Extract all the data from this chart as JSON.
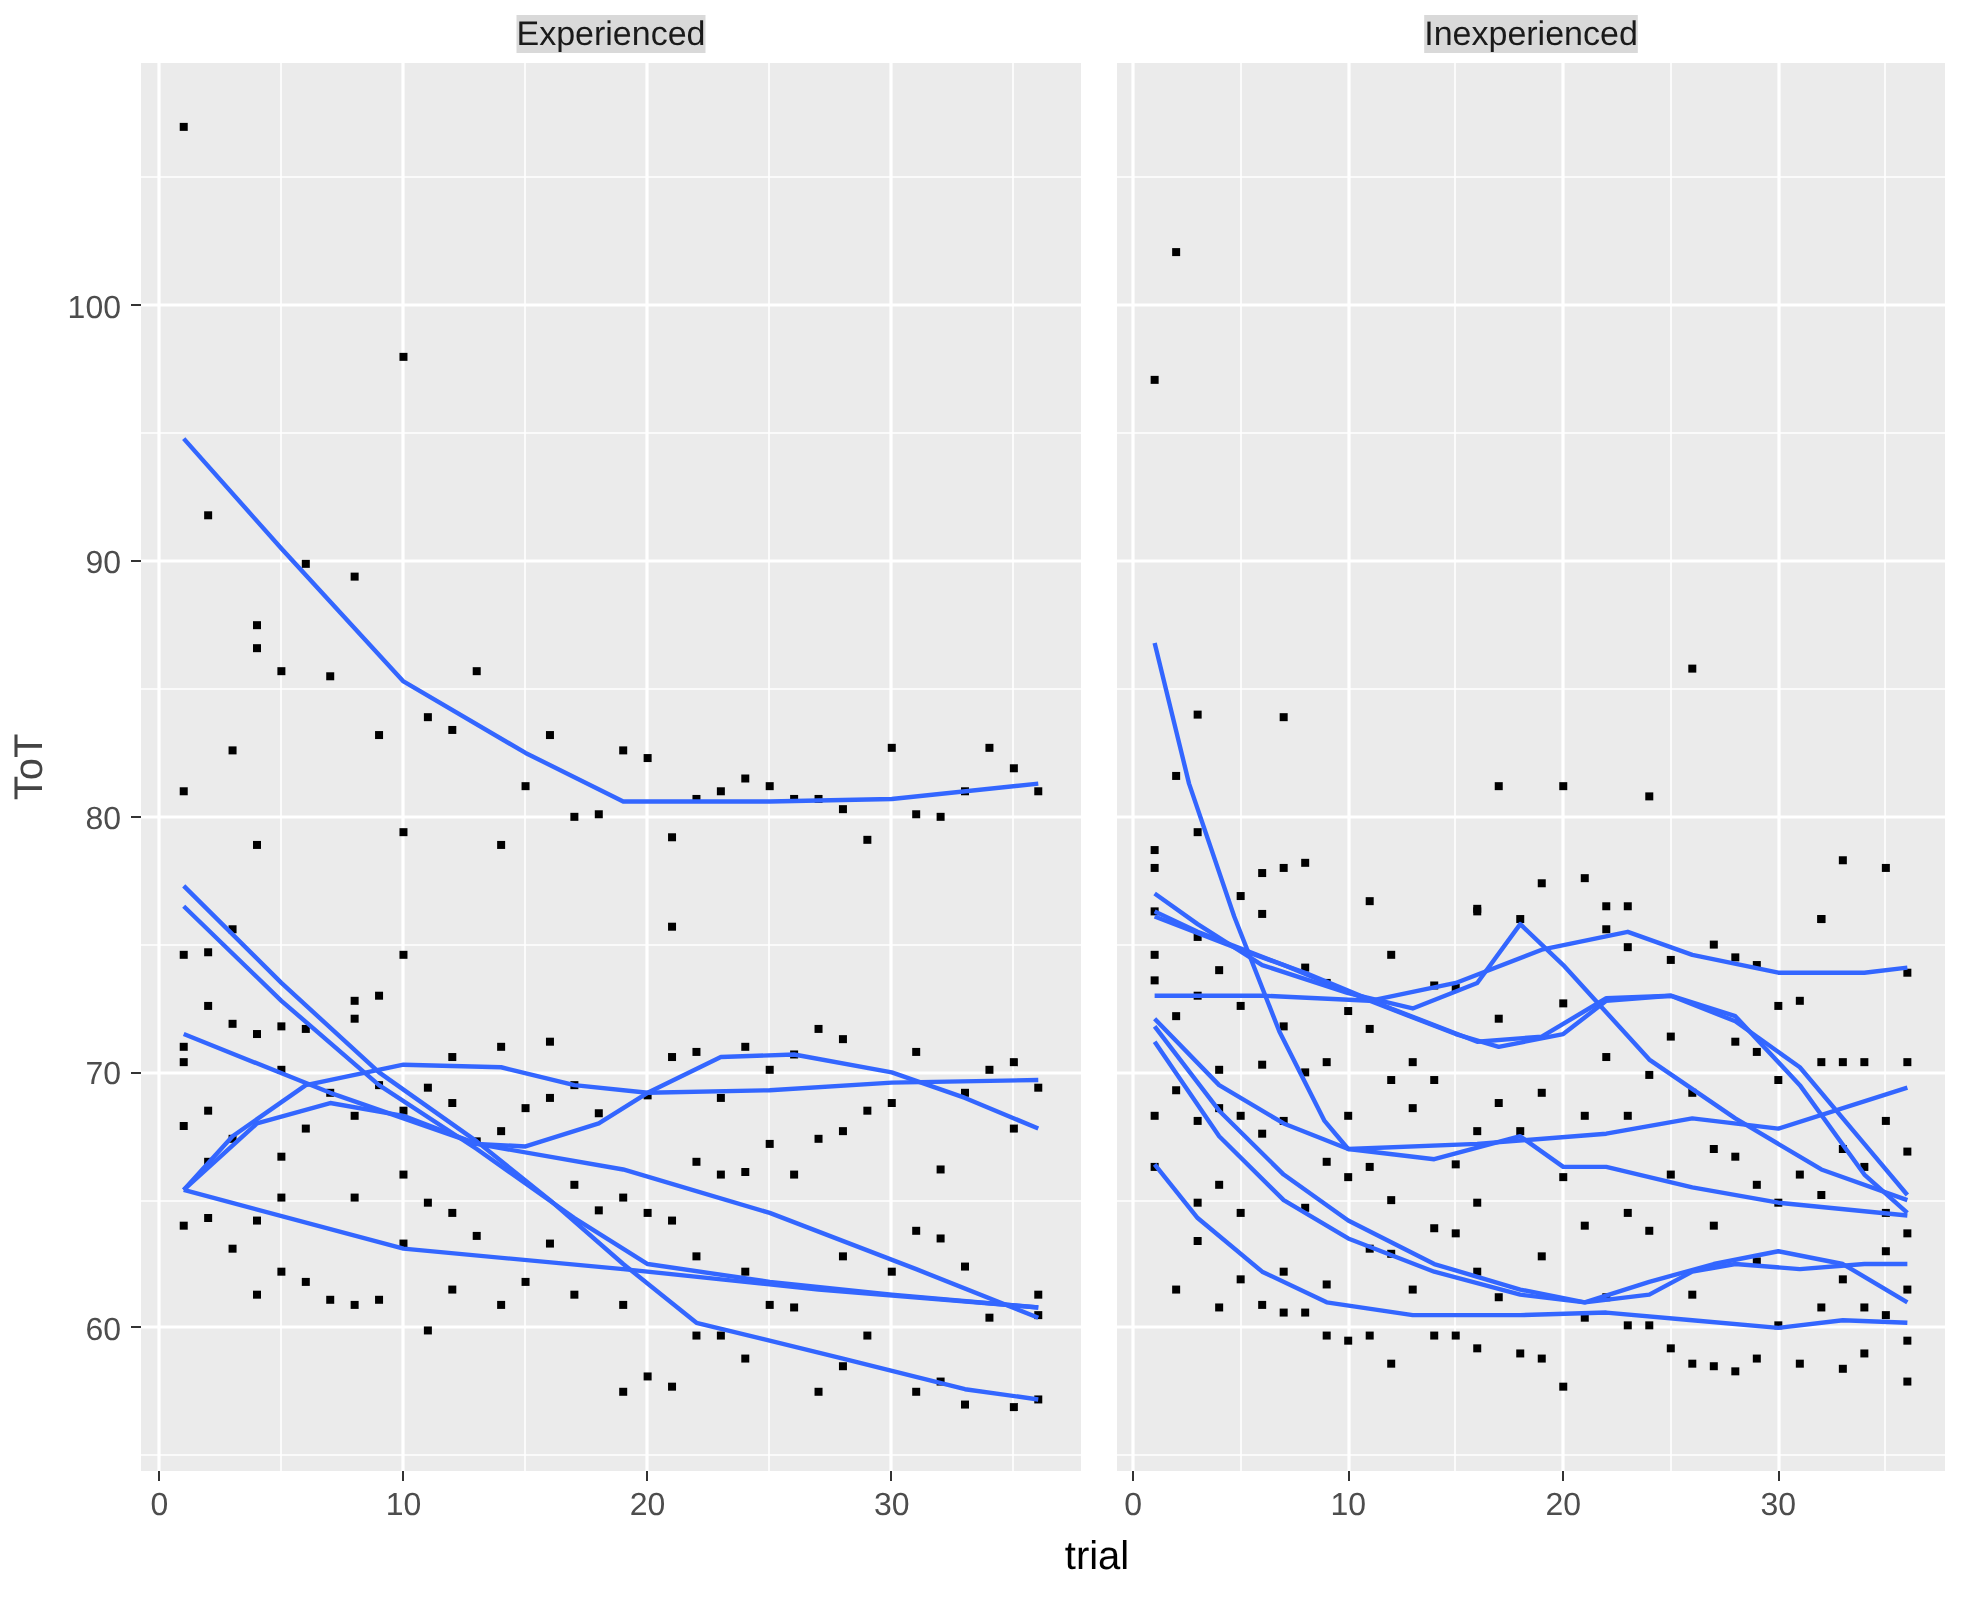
{
  "chart_data": [
    {
      "type": "line",
      "title": "Experienced",
      "xlabel": "trial",
      "ylabel": "ToT",
      "xlim": [
        -0.75,
        37.75
      ],
      "ylim": [
        54.4,
        109.5
      ],
      "xticks": [
        0,
        10,
        20,
        30
      ],
      "yticks": [
        60,
        70,
        80,
        90,
        100
      ],
      "grid": true,
      "series": [
        {
          "type": "scatter",
          "marker": "square",
          "color": "#000000",
          "x": [
            1,
            10,
            2,
            6,
            8,
            4,
            4,
            5,
            7,
            13,
            3,
            1,
            9,
            11,
            12,
            4,
            10,
            14,
            15,
            16,
            17,
            18,
            19,
            20,
            21,
            21,
            22,
            23,
            24,
            25,
            26,
            27,
            28,
            29,
            30,
            31,
            32,
            33,
            34,
            35,
            36,
            1,
            2,
            3,
            2,
            1,
            1,
            1,
            1,
            2,
            2,
            2,
            3,
            3,
            3,
            4,
            4,
            4,
            5,
            5,
            5,
            5,
            5,
            6,
            6,
            6,
            7,
            7,
            8,
            8,
            8,
            8,
            8,
            9,
            9,
            9,
            10,
            10,
            10,
            10,
            11,
            11,
            11,
            12,
            12,
            12,
            12,
            13,
            13,
            14,
            14,
            14,
            15,
            15,
            16,
            16,
            16,
            17,
            17,
            17,
            18,
            18,
            19,
            19,
            19,
            20,
            20,
            20,
            21,
            21,
            21,
            22,
            22,
            22,
            22,
            23,
            23,
            23,
            24,
            24,
            24,
            24,
            25,
            25,
            25,
            26,
            26,
            26,
            27,
            27,
            27,
            28,
            28,
            28,
            28,
            29,
            29,
            30,
            30,
            31,
            31,
            31,
            32,
            32,
            32,
            33,
            33,
            33,
            34,
            34,
            35,
            35,
            35,
            36,
            36,
            36,
            36
          ],
          "values": [
            107.0,
            98.0,
            91.8,
            89.9,
            89.4,
            87.5,
            86.6,
            85.7,
            85.5,
            85.7,
            82.6,
            81.0,
            83.2,
            83.9,
            83.4,
            78.9,
            79.4,
            78.9,
            81.2,
            83.2,
            80.0,
            80.1,
            82.6,
            82.3,
            79.2,
            75.7,
            80.7,
            81.0,
            81.5,
            81.2,
            80.7,
            80.7,
            80.3,
            79.1,
            82.7,
            80.1,
            80.0,
            81.0,
            82.7,
            81.9,
            81.0,
            74.6,
            74.7,
            75.6,
            72.6,
            71.0,
            70.4,
            67.9,
            64.0,
            68.5,
            66.5,
            64.3,
            71.9,
            67.4,
            63.1,
            71.5,
            64.2,
            61.3,
            71.8,
            70.1,
            66.7,
            65.1,
            62.2,
            71.7,
            67.8,
            61.8,
            69.2,
            61.1,
            72.8,
            72.1,
            68.3,
            65.1,
            60.9,
            73.0,
            69.5,
            61.1,
            74.6,
            68.5,
            66.0,
            63.3,
            69.4,
            64.9,
            59.9,
            70.6,
            68.8,
            64.5,
            61.5,
            67.3,
            63.6,
            71.0,
            67.7,
            60.9,
            68.6,
            61.8,
            71.2,
            69.0,
            63.3,
            69.5,
            65.6,
            61.3,
            68.4,
            64.6,
            65.1,
            60.9,
            57.5,
            69.1,
            64.5,
            58.1,
            70.6,
            64.2,
            57.7,
            70.8,
            66.5,
            62.8,
            59.7,
            69.0,
            66.0,
            59.7,
            71.0,
            66.1,
            62.2,
            58.8,
            70.1,
            67.2,
            60.9,
            70.7,
            66.0,
            60.8,
            71.7,
            67.4,
            57.5,
            71.3,
            67.7,
            62.8,
            58.5,
            68.5,
            59.7,
            68.8,
            62.2,
            70.8,
            63.8,
            57.5,
            66.2,
            63.5,
            57.9,
            69.2,
            62.4,
            57.0,
            70.1,
            60.4,
            70.4,
            67.8,
            56.9,
            69.4,
            61.3,
            60.5,
            57.2
          ]
        },
        {
          "color": "#3366ff",
          "x": [
            1,
            5,
            10,
            15,
            19,
            25,
            30,
            36
          ],
          "values": [
            94.8,
            90.5,
            85.3,
            82.5,
            80.6,
            80.6,
            80.7,
            81.3
          ]
        },
        {
          "color": "#3366ff",
          "x": [
            1,
            5,
            9,
            13,
            16,
            19,
            22,
            28,
            33,
            36
          ],
          "values": [
            77.3,
            73.5,
            70.0,
            67.3,
            65.0,
            62.5,
            60.2,
            58.8,
            57.6,
            57.2
          ]
        },
        {
          "color": "#3366ff",
          "x": [
            1,
            5,
            9,
            13,
            17,
            20,
            25,
            30,
            36
          ],
          "values": [
            76.5,
            72.8,
            69.5,
            67.0,
            64.3,
            62.5,
            61.8,
            61.3,
            60.8
          ]
        },
        {
          "color": "#3366ff",
          "x": [
            1,
            7,
            13,
            19,
            25,
            31,
            36
          ],
          "values": [
            71.5,
            69.2,
            67.2,
            66.2,
            64.5,
            62.3,
            60.4
          ]
        },
        {
          "color": "#3366ff",
          "x": [
            1,
            3,
            6,
            10,
            14,
            17,
            20,
            25,
            30,
            36
          ],
          "values": [
            65.4,
            67.5,
            69.5,
            70.3,
            70.2,
            69.5,
            69.2,
            69.3,
            69.6,
            69.7
          ]
        },
        {
          "color": "#3366ff",
          "x": [
            1,
            10,
            19,
            27,
            36
          ],
          "values": [
            65.4,
            63.1,
            62.3,
            61.5,
            60.8
          ]
        },
        {
          "color": "#3366ff",
          "x": [
            1,
            4,
            7,
            10,
            13,
            15,
            18,
            20,
            23,
            26,
            30,
            33,
            36
          ],
          "values": [
            65.4,
            68.0,
            68.8,
            68.3,
            67.2,
            67.1,
            68.0,
            69.2,
            70.6,
            70.7,
            70.0,
            69.0,
            67.8
          ]
        }
      ]
    },
    {
      "type": "line",
      "title": "Inexperienced",
      "xlim": [
        -0.75,
        37.75
      ],
      "ylim": [
        54.4,
        109.5
      ],
      "xticks": [
        0,
        10,
        20,
        30
      ],
      "yticks": [
        60,
        70,
        80,
        90,
        100
      ],
      "grid": true,
      "tick_labels": "x",
      "series": [
        {
          "type": "scatter",
          "marker": "square",
          "color": "#000000",
          "x": [
            2,
            1,
            26,
            3,
            7,
            2,
            3,
            1,
            1,
            6,
            7,
            8,
            5,
            11,
            17,
            20,
            24,
            33,
            35,
            32,
            19,
            21,
            16,
            22,
            23,
            1,
            1,
            1,
            1,
            1,
            2,
            2,
            2,
            3,
            3,
            3,
            3,
            3,
            4,
            4,
            4,
            4,
            4,
            5,
            5,
            5,
            5,
            6,
            6,
            6,
            6,
            7,
            7,
            7,
            7,
            8,
            8,
            8,
            8,
            9,
            9,
            9,
            9,
            9,
            10,
            10,
            10,
            10,
            11,
            11,
            11,
            11,
            12,
            12,
            12,
            12,
            12,
            13,
            13,
            13,
            14,
            14,
            14,
            14,
            15,
            15,
            15,
            15,
            16,
            16,
            16,
            16,
            16,
            17,
            17,
            17,
            18,
            18,
            18,
            19,
            19,
            19,
            20,
            20,
            20,
            21,
            21,
            21,
            22,
            22,
            22,
            23,
            23,
            23,
            23,
            24,
            24,
            24,
            25,
            25,
            25,
            25,
            26,
            26,
            26,
            27,
            27,
            27,
            27,
            28,
            28,
            28,
            28,
            29,
            29,
            29,
            29,
            29,
            30,
            30,
            30,
            30,
            31,
            31,
            31,
            32,
            32,
            32,
            32,
            33,
            33,
            33,
            33,
            34,
            34,
            34,
            34,
            35,
            35,
            35,
            35,
            36,
            36,
            36,
            36,
            36,
            36,
            36
          ],
          "values": [
            102.1,
            97.1,
            85.8,
            84.0,
            83.9,
            81.6,
            79.4,
            78.7,
            78.0,
            77.8,
            78.0,
            78.2,
            76.9,
            76.7,
            81.2,
            81.2,
            80.8,
            78.3,
            78.0,
            76.0,
            77.4,
            77.6,
            76.4,
            76.5,
            76.5,
            76.3,
            74.6,
            73.6,
            68.3,
            66.3,
            72.2,
            69.3,
            61.5,
            75.3,
            73.0,
            68.1,
            64.9,
            63.4,
            74.0,
            70.1,
            68.6,
            65.6,
            60.8,
            72.6,
            68.3,
            64.5,
            61.9,
            76.2,
            70.3,
            67.6,
            60.9,
            71.8,
            68.1,
            62.2,
            60.6,
            74.1,
            70.0,
            64.7,
            60.6,
            73.5,
            70.4,
            66.5,
            61.7,
            59.7,
            72.4,
            68.3,
            65.9,
            59.5,
            71.7,
            66.3,
            63.1,
            59.7,
            74.6,
            69.7,
            65.0,
            62.9,
            58.6,
            70.4,
            68.6,
            61.5,
            73.4,
            69.7,
            63.9,
            59.7,
            73.3,
            66.4,
            63.7,
            59.7,
            76.3,
            67.7,
            64.9,
            62.2,
            59.2,
            72.1,
            68.8,
            61.2,
            76.0,
            67.7,
            59.0,
            69.2,
            62.8,
            58.8,
            72.7,
            65.9,
            57.7,
            68.3,
            64.0,
            60.4,
            75.6,
            70.6,
            61.2,
            74.9,
            68.3,
            64.5,
            60.1,
            69.9,
            63.8,
            60.1,
            74.4,
            71.4,
            66.0,
            59.2,
            69.2,
            61.3,
            58.6,
            75.0,
            67.0,
            64.0,
            58.5,
            74.5,
            71.2,
            66.7,
            58.3,
            74.2,
            70.8,
            65.6,
            62.6,
            58.8,
            72.6,
            69.7,
            64.9,
            60.1,
            72.8,
            66.0,
            58.6,
            76.0,
            70.4,
            65.2,
            60.8,
            70.4,
            67.0,
            61.9,
            58.4,
            70.4,
            66.3,
            60.8,
            59.0,
            68.1,
            64.5,
            63.0,
            60.5,
            73.9,
            70.4,
            66.9,
            63.7,
            61.5,
            59.5,
            57.9
          ]
        },
        {
          "color": "#3366ff",
          "x": [
            1,
            2.6,
            4.7,
            6.8,
            8.9,
            10,
            16,
            22,
            26,
            30,
            36
          ],
          "values": [
            86.8,
            81.3,
            76.1,
            71.6,
            68.1,
            67.0,
            67.2,
            67.6,
            68.2,
            67.8,
            69.4
          ]
        },
        {
          "color": "#3366ff",
          "x": [
            1,
            3,
            6,
            10,
            13,
            16,
            18,
            20,
            24,
            28,
            32,
            36
          ],
          "values": [
            77.0,
            75.8,
            74.2,
            73.1,
            72.5,
            73.5,
            75.8,
            74.2,
            70.5,
            68.2,
            66.2,
            65.0
          ]
        },
        {
          "color": "#3366ff",
          "x": [
            1,
            3,
            7,
            11,
            15,
            17,
            20,
            22,
            25,
            28,
            31,
            34,
            36
          ],
          "values": [
            76.3,
            75.5,
            74.2,
            72.8,
            71.5,
            71.0,
            71.5,
            72.8,
            73.0,
            72.2,
            69.5,
            66.0,
            64.5
          ]
        },
        {
          "color": "#3366ff",
          "x": [
            1,
            6,
            11,
            15,
            19,
            23,
            26,
            30,
            34,
            36
          ],
          "values": [
            73.0,
            73.0,
            72.8,
            73.5,
            74.8,
            75.5,
            74.6,
            73.9,
            73.9,
            74.1
          ]
        },
        {
          "color": "#3366ff",
          "x": [
            1,
            5,
            8,
            12,
            16,
            19,
            22,
            25,
            28,
            31,
            34,
            36
          ],
          "values": [
            76.1,
            74.8,
            73.9,
            72.5,
            71.2,
            71.4,
            72.9,
            73.0,
            72.0,
            70.2,
            67.2,
            65.2
          ]
        },
        {
          "color": "#3366ff",
          "x": [
            1,
            4,
            7,
            10,
            14,
            18,
            20,
            22,
            26,
            30,
            36
          ],
          "values": [
            72.1,
            69.5,
            68.0,
            67.0,
            66.6,
            67.5,
            66.3,
            66.3,
            65.5,
            64.9,
            64.4
          ]
        },
        {
          "color": "#3366ff",
          "x": [
            1,
            4,
            7,
            10,
            14,
            18,
            21,
            24,
            27,
            30,
            33,
            36
          ],
          "values": [
            71.2,
            67.5,
            65.0,
            63.5,
            62.2,
            61.3,
            61.0,
            61.8,
            62.5,
            63.0,
            62.5,
            61.0
          ]
        },
        {
          "color": "#3366ff",
          "x": [
            1,
            4,
            7,
            10,
            14,
            18,
            21,
            24,
            26,
            28,
            31,
            34,
            36
          ],
          "values": [
            71.8,
            68.5,
            66.0,
            64.2,
            62.5,
            61.5,
            61.0,
            61.3,
            62.2,
            62.5,
            62.3,
            62.5,
            62.5
          ]
        },
        {
          "color": "#3366ff",
          "x": [
            1,
            3,
            6,
            9,
            13,
            18,
            22,
            26,
            30,
            33,
            36
          ],
          "values": [
            66.4,
            64.3,
            62.2,
            61.0,
            60.5,
            60.5,
            60.6,
            60.3,
            60.0,
            60.3,
            60.2
          ]
        }
      ]
    }
  ]
}
